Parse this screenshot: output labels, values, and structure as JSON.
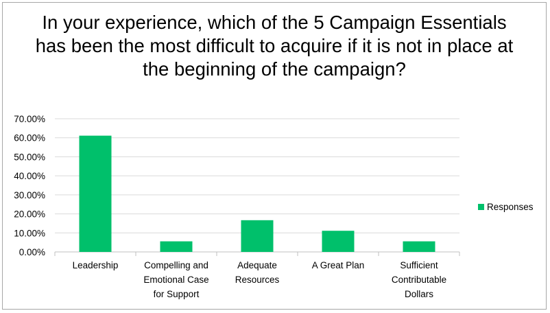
{
  "title": "In your experience, which of the 5 Campaign Essentials has been the most difficult to acquire if it is not in place at the beginning of the campaign?",
  "colors": {
    "series": "#00c06b",
    "grid": "#d9d9d9",
    "axis": "#bfbfbf"
  },
  "chart_data": {
    "type": "bar",
    "title": "In your experience, which of the 5 Campaign Essentials has been the most difficult to acquire if it is not in place at the beginning of the campaign?",
    "categories": [
      [
        "Leadership"
      ],
      [
        "Compelling and",
        "Emotional Case",
        "for Support"
      ],
      [
        "Adequate",
        "Resources"
      ],
      [
        "A Great Plan"
      ],
      [
        "Sufficient",
        "Contributable",
        "Dollars"
      ]
    ],
    "series": [
      {
        "name": "Responses",
        "values": [
          0.6111,
          0.0556,
          0.1667,
          0.1111,
          0.0556
        ]
      }
    ],
    "ylim": [
      0,
      0.7
    ],
    "ytick_step": 0.1,
    "ytick_labels": [
      "0.00%",
      "10.00%",
      "20.00%",
      "30.00%",
      "40.00%",
      "50.00%",
      "60.00%",
      "70.00%"
    ],
    "grid": true,
    "legend": "right"
  }
}
